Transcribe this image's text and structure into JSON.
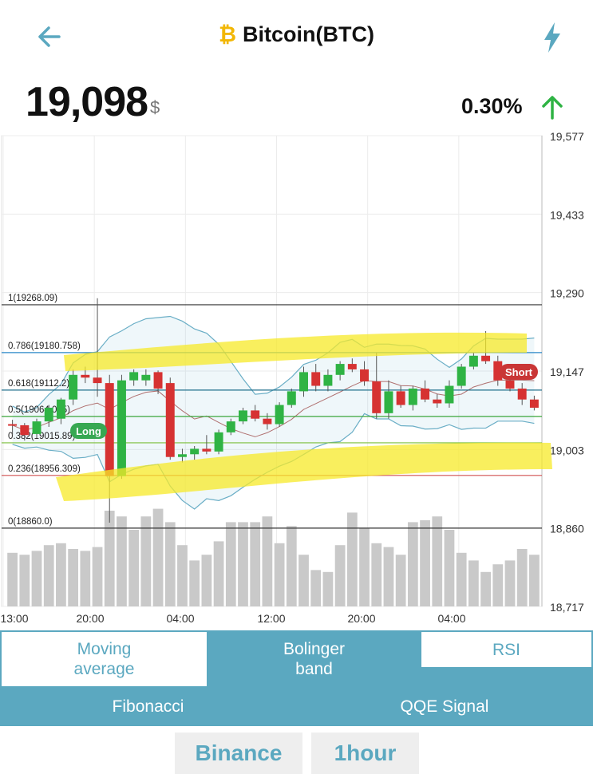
{
  "header": {
    "title": "Bitcoin(BTC)",
    "coin_glyph": "₿",
    "back_icon": "arrow-left-icon",
    "alert_icon": "lightning-bolt-icon"
  },
  "price": {
    "value": "19,098",
    "unit": "$",
    "change": "0.30%",
    "direction": "up"
  },
  "chart_data": {
    "type": "candlestick",
    "y_ticks": [
      "19,577",
      "19,433",
      "19,290",
      "19,147",
      "19,003",
      "18,860",
      "18,717"
    ],
    "ylim": [
      18717,
      19577
    ],
    "x_ticks": [
      "13:00",
      "20:00",
      "04:00",
      "12:00",
      "20:00",
      "04:00"
    ],
    "fibonacci": [
      {
        "label": "1(19268.09)",
        "value": 19268.09
      },
      {
        "label": "0.786(19180.758)",
        "value": 19180.758
      },
      {
        "label": "0.618(19112.2)",
        "value": 19112.2
      },
      {
        "label": "0.5(19064.045)",
        "value": 19064.045
      },
      {
        "label": "0.382(19015.89)",
        "value": 19015.89
      },
      {
        "label": "0.236(18956.309)",
        "value": 18956.309
      },
      {
        "label": "0(18860.0)",
        "value": 18860.0
      }
    ],
    "signals": [
      {
        "label": "Long",
        "index": 4
      },
      {
        "label": "Short",
        "index": 25
      }
    ],
    "candles": [
      [
        19050,
        19058,
        19030,
        19048
      ],
      [
        19048,
        19052,
        19020,
        19030
      ],
      [
        19032,
        19060,
        19025,
        19055
      ],
      [
        19055,
        19085,
        19045,
        19080
      ],
      [
        19060,
        19098,
        19050,
        19095
      ],
      [
        19095,
        19150,
        19085,
        19140
      ],
      [
        19140,
        19155,
        19125,
        19135
      ],
      [
        19135,
        19280,
        19100,
        19125
      ],
      [
        19125,
        19140,
        18870,
        18955
      ],
      [
        18955,
        19140,
        18950,
        19130
      ],
      [
        19130,
        19150,
        19120,
        19145
      ],
      [
        19130,
        19150,
        19120,
        19140
      ],
      [
        19145,
        19148,
        19105,
        19115
      ],
      [
        19125,
        19135,
        18985,
        18990
      ],
      [
        18990,
        19005,
        18980,
        18995
      ],
      [
        18995,
        19010,
        18985,
        19005
      ],
      [
        19005,
        19030,
        18995,
        19000
      ],
      [
        19000,
        19040,
        18995,
        19035
      ],
      [
        19035,
        19060,
        19030,
        19055
      ],
      [
        19055,
        19080,
        19050,
        19075
      ],
      [
        19075,
        19085,
        19055,
        19060
      ],
      [
        19060,
        19070,
        19040,
        19050
      ],
      [
        19050,
        19090,
        19045,
        19085
      ],
      [
        19085,
        19115,
        19080,
        19110
      ],
      [
        19110,
        19155,
        19100,
        19145
      ],
      [
        19145,
        19160,
        19110,
        19120
      ],
      [
        19120,
        19150,
        19110,
        19140
      ],
      [
        19140,
        19165,
        19130,
        19160
      ],
      [
        19160,
        19170,
        19145,
        19150
      ],
      [
        19150,
        19165,
        19120,
        19128
      ],
      [
        19128,
        19180,
        19060,
        19070
      ],
      [
        19070,
        19130,
        19060,
        19110
      ],
      [
        19110,
        19120,
        19080,
        19085
      ],
      [
        19085,
        19120,
        19075,
        19115
      ],
      [
        19115,
        19130,
        19090,
        19095
      ],
      [
        19095,
        19105,
        19080,
        19088
      ],
      [
        19088,
        19130,
        19080,
        19120
      ],
      [
        19120,
        19160,
        19115,
        19155
      ],
      [
        19155,
        19180,
        19150,
        19175
      ],
      [
        19175,
        19220,
        19160,
        19165
      ],
      [
        19165,
        19175,
        19120,
        19130
      ],
      [
        19130,
        19140,
        19110,
        19115
      ],
      [
        19115,
        19125,
        19085,
        19095
      ],
      [
        19095,
        19102,
        19075,
        19080
      ]
    ],
    "volume": [
      28,
      27,
      29,
      32,
      33,
      30,
      29,
      31,
      50,
      47,
      40,
      47,
      51,
      44,
      32,
      24,
      27,
      34,
      44,
      44,
      44,
      47,
      33,
      42,
      27,
      19,
      18,
      32,
      49,
      41,
      33,
      31,
      27,
      44,
      45,
      47,
      40,
      28,
      24,
      18,
      22,
      24,
      30,
      27
    ]
  },
  "tabs": {
    "moving_average": "Moving\naverage",
    "bolinger_band": "Bolinger\nband",
    "rsi": "RSI",
    "fibonacci": "Fibonacci",
    "qqe_signal": "QQE Signal"
  },
  "footer": {
    "exchange": "Binance",
    "interval": "1hour"
  },
  "colors": {
    "accent": "#5ba8c0",
    "up": "#2fb344",
    "down": "#d63232",
    "highlight": "#f7ea28"
  }
}
